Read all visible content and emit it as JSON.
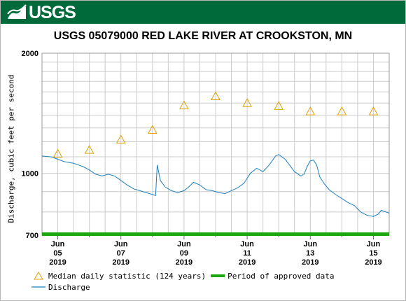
{
  "header": {
    "logo_text": "USGS",
    "logo_icon": "usgs-wave-icon",
    "brand_color": "#006a3a"
  },
  "chart_data": {
    "type": "line",
    "title": "USGS 05079000 RED LAKE RIVER AT CROOKSTON, MN",
    "ylabel": "Discharge, cubic feet per second",
    "xlabel": "",
    "yscale": "log",
    "ylim": [
      700,
      2000
    ],
    "yticks": [
      700,
      1000,
      2000
    ],
    "xlim": [
      4.5,
      15.5
    ],
    "xticks": [
      {
        "day": 5,
        "label": [
          "Jun",
          "05",
          "2019"
        ]
      },
      {
        "day": 7,
        "label": [
          "Jun",
          "07",
          "2019"
        ]
      },
      {
        "day": 9,
        "label": [
          "Jun",
          "09",
          "2019"
        ]
      },
      {
        "day": 11,
        "label": [
          "Jun",
          "11",
          "2019"
        ]
      },
      {
        "day": 13,
        "label": [
          "Jun",
          "13",
          "2019"
        ]
      },
      {
        "day": 15,
        "label": [
          "Jun",
          "15",
          "2019"
        ]
      }
    ],
    "grid": true,
    "series": [
      {
        "name": "Median daily statistic (124 years)",
        "marker": "triangle",
        "color": "#e0a000",
        "x": [
          5,
          6,
          7,
          8,
          9,
          10,
          11,
          12,
          13,
          14,
          15
        ],
        "y": [
          1120,
          1145,
          1215,
          1285,
          1480,
          1560,
          1500,
          1475,
          1430,
          1430,
          1430
        ]
      },
      {
        "name": "Discharge",
        "color": "#1f7fc0",
        "x": [
          4.5,
          4.8,
          5.0,
          5.2,
          5.5,
          5.8,
          6.0,
          6.2,
          6.4,
          6.6,
          6.8,
          7.0,
          7.2,
          7.4,
          7.6,
          7.8,
          8.0,
          8.1,
          8.15,
          8.25,
          8.4,
          8.6,
          8.8,
          9.0,
          9.15,
          9.3,
          9.5,
          9.7,
          9.9,
          10.1,
          10.3,
          10.5,
          10.7,
          10.9,
          11.1,
          11.3,
          11.5,
          11.7,
          11.9,
          12.0,
          12.2,
          12.3,
          12.5,
          12.7,
          12.8,
          12.9,
          13.0,
          13.1,
          13.2,
          13.3,
          13.45,
          13.6,
          13.8,
          14.0,
          14.2,
          14.4,
          14.6,
          14.8,
          15.0,
          15.15,
          15.25,
          15.4,
          15.5
        ],
        "y": [
          1105,
          1100,
          1085,
          1070,
          1060,
          1040,
          1020,
          995,
          985,
          995,
          985,
          960,
          935,
          915,
          905,
          895,
          885,
          880,
          1050,
          960,
          925,
          905,
          895,
          905,
          925,
          950,
          935,
          910,
          905,
          895,
          890,
          905,
          920,
          945,
          1000,
          1030,
          1010,
          1050,
          1105,
          1115,
          1085,
          1060,
          1010,
          985,
          995,
          1040,
          1075,
          1080,
          1050,
          980,
          940,
          910,
          885,
          865,
          845,
          830,
          800,
          785,
          780,
          790,
          808,
          800,
          795
        ]
      }
    ],
    "approved_period": {
      "name": "Period of approved data",
      "color": "#1ba80e",
      "x": [
        4.5,
        15.5
      ]
    },
    "legend": "bottom-left"
  }
}
